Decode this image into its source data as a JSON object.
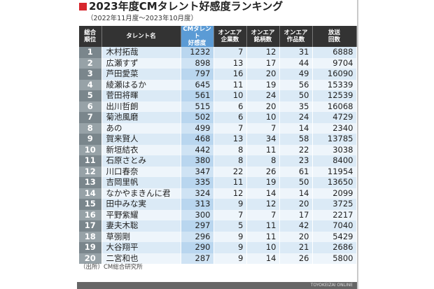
{
  "title": "2023年度CMタレント好感度ランキング",
  "subtitle": "（2022年11月度～2023年10月度）",
  "accent_color": "#d7262d",
  "headers": [
    "総合\n順位",
    "タレント名",
    "CMタレント\n好感度",
    "オンエア\n企業数",
    "オンエア\n銘柄数",
    "オンエア\n作品数",
    "放送\n回数"
  ],
  "rows": [
    [
      "1",
      "木村拓哉",
      "1232",
      "7",
      "12",
      "31",
      "6888"
    ],
    [
      "2",
      "広瀬すず",
      "898",
      "13",
      "17",
      "44",
      "9704"
    ],
    [
      "3",
      "芦田愛菜",
      "797",
      "16",
      "20",
      "49",
      "16090"
    ],
    [
      "4",
      "綾瀬はるか",
      "645",
      "11",
      "19",
      "56",
      "15339"
    ],
    [
      "5",
      "菅田将暉",
      "561",
      "10",
      "24",
      "50",
      "12539"
    ],
    [
      "6",
      "出川哲朗",
      "515",
      "6",
      "20",
      "35",
      "16068"
    ],
    [
      "7",
      "菊池風磨",
      "502",
      "6",
      "10",
      "24",
      "4729"
    ],
    [
      "8",
      "あの",
      "499",
      "7",
      "7",
      "14",
      "2340"
    ],
    [
      "9",
      "賀来賢人",
      "468",
      "13",
      "34",
      "58",
      "13785"
    ],
    [
      "10",
      "新垣結衣",
      "442",
      "8",
      "11",
      "22",
      "3038"
    ],
    [
      "11",
      "石原さとみ",
      "380",
      "8",
      "8",
      "23",
      "8400"
    ],
    [
      "12",
      "川口春奈",
      "347",
      "22",
      "26",
      "61",
      "11954"
    ],
    [
      "13",
      "吉岡里帆",
      "335",
      "11",
      "19",
      "50",
      "13650"
    ],
    [
      "14",
      "なかやまきんに君",
      "324",
      "12",
      "14",
      "14",
      "2099"
    ],
    [
      "15",
      "田中みな実",
      "313",
      "9",
      "12",
      "20",
      "3725"
    ],
    [
      "16",
      "平野紫耀",
      "300",
      "7",
      "7",
      "17",
      "2217"
    ],
    [
      "17",
      "妻夫木聡",
      "297",
      "5",
      "11",
      "42",
      "7040"
    ],
    [
      "18",
      "草彅剛",
      "296",
      "9",
      "11",
      "20",
      "5429"
    ],
    [
      "19",
      "大谷翔平",
      "290",
      "9",
      "10",
      "21",
      "2686"
    ],
    [
      "20",
      "二宮和也",
      "287",
      "9",
      "14",
      "26",
      "5800"
    ]
  ],
  "source": "（出所）CM総合研究所",
  "footer": "TOYOKEIZAI ONLINE"
}
